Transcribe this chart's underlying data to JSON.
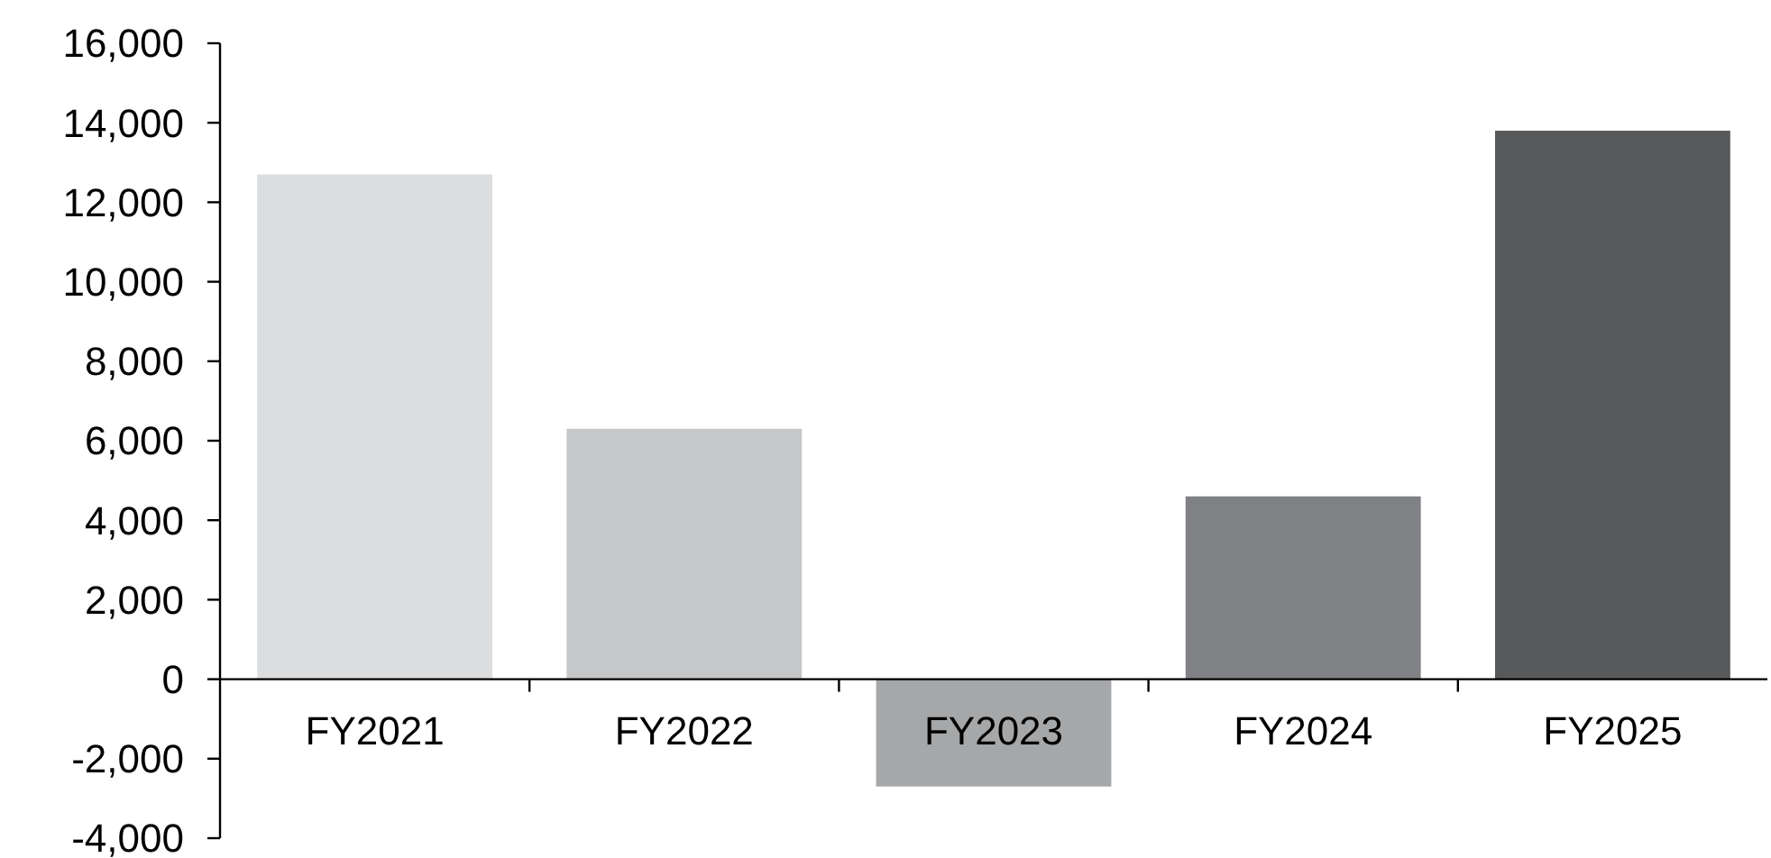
{
  "chart_data": {
    "type": "bar",
    "categories": [
      "FY2021",
      "FY2022",
      "FY2023",
      "FY2024",
      "FY2025"
    ],
    "values": [
      12700,
      6300,
      -2700,
      4600,
      13800
    ],
    "colors": [
      "#dcdddf",
      "#c6c7c9",
      "#a6a7a9",
      "#808184",
      "#58595b"
    ],
    "ylim": [
      -4000,
      16000
    ],
    "yticks": [
      {
        "value": -4000,
        "label": "-4,000"
      },
      {
        "value": -2000,
        "label": "-2,000"
      },
      0,
      {
        "value": 2000,
        "label": "2,000"
      },
      {
        "value": 4000,
        "label": "4,000"
      },
      {
        "value": 6000,
        "label": "6,000"
      },
      {
        "value": 8000,
        "label": "8,000"
      },
      {
        "value": 10000,
        "label": "10,000"
      },
      {
        "value": 12000,
        "label": "12,000"
      },
      {
        "value": 14000,
        "label": "14,000"
      },
      {
        "value": 16000,
        "label": "16,000"
      }
    ],
    "grid": false
  }
}
